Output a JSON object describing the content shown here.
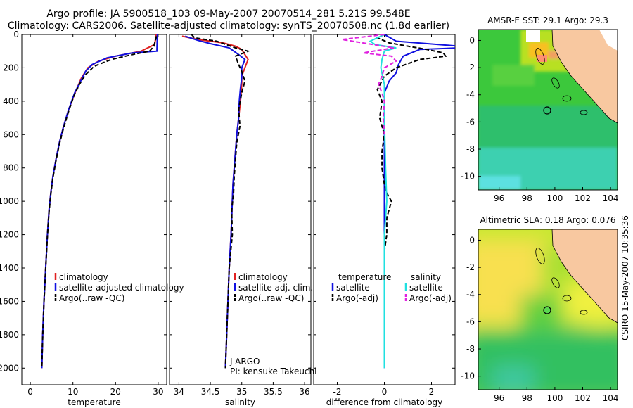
{
  "header": {
    "title_line1": "Argo profile: JA 5900518_103 09-May-2007 20070514_281 5.21S 99.548E",
    "title_line2": "Climatology: CARS2006. Satellite-adjusted climatology: synTS_20070508.nc (1.8d earlier)"
  },
  "side_label": "CSIRO 15-May-2007 10:35:36",
  "colors": {
    "climatology": "#e02020",
    "satellite": "#1010e0",
    "argo": "#000000",
    "satellite_salinity": "#20e0e0",
    "argo_adj_salinity": "#e020e0",
    "ocean_green": "#3cc83c",
    "land": "#f8c8a0"
  },
  "chart_data": [
    {
      "type": "line",
      "xlabel": "temperature",
      "ylabel": "",
      "xlim": [
        -2,
        32
      ],
      "ylim": [
        2100,
        0
      ],
      "xticks": [
        0,
        10,
        20,
        30
      ],
      "yticks": [
        0,
        200,
        400,
        600,
        800,
        1000,
        1200,
        1400,
        1600,
        1800,
        2000
      ],
      "legend": [
        "climatology",
        "satellite-adjusted climatology",
        "Argo(..raw -QC)"
      ],
      "legend_position": "lower-right",
      "series": [
        {
          "name": "climatology",
          "style": "solid",
          "color": "#e02020",
          "points": [
            [
              29.5,
              0
            ],
            [
              29.2,
              60
            ],
            [
              26,
              100
            ],
            [
              20,
              130
            ],
            [
              16,
              160
            ],
            [
              13.5,
              200
            ],
            [
              12,
              260
            ],
            [
              10.5,
              350
            ],
            [
              9,
              450
            ],
            [
              7.8,
              550
            ],
            [
              6.8,
              650
            ],
            [
              6,
              750
            ],
            [
              5.3,
              850
            ],
            [
              4.8,
              950
            ],
            [
              4.4,
              1050
            ],
            [
              4,
              1200
            ],
            [
              3.6,
              1400
            ],
            [
              3.2,
              1600
            ],
            [
              2.9,
              1800
            ],
            [
              2.7,
              2000
            ]
          ]
        },
        {
          "name": "satellite-adjusted climatology",
          "style": "solid",
          "color": "#1010e0",
          "points": [
            [
              29.8,
              0
            ],
            [
              29.7,
              100
            ],
            [
              24,
              110
            ],
            [
              18,
              140
            ],
            [
              14.5,
              180
            ],
            [
              13,
              220
            ],
            [
              11.8,
              280
            ],
            [
              10.4,
              350
            ],
            [
              9,
              450
            ],
            [
              7.8,
              550
            ],
            [
              6.8,
              650
            ],
            [
              6,
              750
            ],
            [
              5.3,
              850
            ],
            [
              4.8,
              950
            ],
            [
              4.4,
              1050
            ],
            [
              4,
              1200
            ],
            [
              3.6,
              1400
            ],
            [
              3.2,
              1600
            ],
            [
              2.9,
              1800
            ],
            [
              2.7,
              2000
            ]
          ]
        },
        {
          "name": "Argo(..raw -QC)",
          "style": "dashed",
          "color": "#000000",
          "points": [
            [
              29.6,
              10
            ],
            [
              29,
              70
            ],
            [
              28,
              100
            ],
            [
              24,
              120
            ],
            [
              19,
              150
            ],
            [
              15,
              190
            ],
            [
              13,
              240
            ],
            [
              11.5,
              300
            ],
            [
              10.2,
              370
            ],
            [
              9,
              460
            ],
            [
              7.8,
              560
            ],
            [
              6.8,
              660
            ],
            [
              6,
              760
            ],
            [
              5.3,
              860
            ],
            [
              4.8,
              960
            ],
            [
              4.4,
              1060
            ],
            [
              4,
              1210
            ],
            [
              3.6,
              1410
            ],
            [
              3.2,
              1610
            ],
            [
              2.9,
              1810
            ],
            [
              2.7,
              1990
            ]
          ]
        }
      ]
    },
    {
      "type": "line",
      "xlabel": "salinity",
      "ylabel": "",
      "xlim": [
        33.85,
        36.1
      ],
      "ylim": [
        2100,
        0
      ],
      "xticks": [
        34,
        34.5,
        35,
        35.5,
        36
      ],
      "legend": [
        "climatology",
        "satellite adj. clim.",
        "Argo(..raw -QC)"
      ],
      "legend_position": "lower-right",
      "annotations": [
        "J-ARGO",
        "PI: kensuke Takeuchi"
      ],
      "series": [
        {
          "name": "climatology",
          "style": "solid",
          "color": "#e02020",
          "points": [
            [
              34.05,
              10
            ],
            [
              34.3,
              30
            ],
            [
              34.7,
              50
            ],
            [
              34.9,
              70
            ],
            [
              35.0,
              90
            ],
            [
              35.1,
              150
            ],
            [
              35.05,
              200
            ],
            [
              35.0,
              250
            ],
            [
              35.0,
              300
            ],
            [
              34.98,
              400
            ],
            [
              34.95,
              500
            ],
            [
              34.92,
              600
            ],
            [
              34.9,
              700
            ],
            [
              34.88,
              800
            ],
            [
              34.86,
              900
            ],
            [
              34.85,
              1000
            ],
            [
              34.83,
              1200
            ],
            [
              34.8,
              1400
            ],
            [
              34.78,
              1600
            ],
            [
              34.76,
              1800
            ],
            [
              34.74,
              2000
            ]
          ]
        },
        {
          "name": "satellite adj. clim.",
          "style": "solid",
          "color": "#1010e0",
          "points": [
            [
              34.1,
              10
            ],
            [
              34.3,
              35
            ],
            [
              34.5,
              55
            ],
            [
              34.8,
              80
            ],
            [
              34.95,
              120
            ],
            [
              35.05,
              150
            ],
            [
              35.0,
              200
            ],
            [
              35.0,
              260
            ],
            [
              34.98,
              320
            ],
            [
              34.96,
              400
            ],
            [
              34.95,
              500
            ],
            [
              34.92,
              600
            ],
            [
              34.9,
              700
            ],
            [
              34.88,
              800
            ],
            [
              34.86,
              900
            ],
            [
              34.85,
              1000
            ],
            [
              34.83,
              1200
            ],
            [
              34.8,
              1400
            ],
            [
              34.78,
              1600
            ],
            [
              34.76,
              1800
            ],
            [
              34.74,
              2000
            ]
          ]
        },
        {
          "name": "Argo(..raw -QC)",
          "style": "dashed",
          "color": "#000000",
          "points": [
            [
              34.2,
              0
            ],
            [
              34.25,
              20
            ],
            [
              34.6,
              40
            ],
            [
              34.9,
              80
            ],
            [
              35.1,
              100
            ],
            [
              34.9,
              130
            ],
            [
              34.95,
              180
            ],
            [
              35.0,
              220
            ],
            [
              35.05,
              280
            ],
            [
              35.0,
              350
            ],
            [
              34.95,
              450
            ],
            [
              34.97,
              550
            ],
            [
              34.92,
              650
            ],
            [
              34.9,
              750
            ],
            [
              34.88,
              850
            ],
            [
              34.87,
              950
            ],
            [
              34.84,
              1050
            ],
            [
              34.85,
              1200
            ],
            [
              34.8,
              1400
            ],
            [
              34.78,
              1600
            ],
            [
              34.76,
              1800
            ],
            [
              34.74,
              2000
            ]
          ]
        }
      ]
    },
    {
      "type": "line",
      "xlabel": "difference from climatology",
      "ylabel": "",
      "xlim": [
        -3,
        3
      ],
      "ylim": [
        2100,
        0
      ],
      "xticks": [
        -2,
        0,
        2
      ],
      "legend": [
        "temperature",
        "satellite",
        "Argo(-adj)",
        "salinity",
        "satellite",
        "Argo(-adj)"
      ],
      "legend_position": "lower-right",
      "series": [
        {
          "name": "temperature satellite",
          "style": "solid",
          "color": "#1010e0",
          "points": [
            [
              0,
              0
            ],
            [
              0.5,
              40
            ],
            [
              3.2,
              70
            ],
            [
              3.2,
              80
            ],
            [
              1.5,
              90
            ],
            [
              0.8,
              130
            ],
            [
              0.6,
              180
            ],
            [
              0.5,
              230
            ],
            [
              0.2,
              280
            ],
            [
              0,
              350
            ],
            [
              0,
              500
            ],
            [
              0,
              800
            ],
            [
              0,
              1000
            ],
            [
              0,
              1400
            ],
            [
              0,
              1800
            ],
            [
              0,
              2000
            ]
          ]
        },
        {
          "name": "temperature Argo(-adj)",
          "style": "dashed",
          "color": "#000000",
          "points": [
            [
              0,
              0
            ],
            [
              -0.3,
              20
            ],
            [
              0.2,
              50
            ],
            [
              1.8,
              90
            ],
            [
              2.5,
              110
            ],
            [
              2.6,
              130
            ],
            [
              1.5,
              150
            ],
            [
              0.5,
              200
            ],
            [
              0,
              250
            ],
            [
              -0.3,
              330
            ],
            [
              -0.1,
              400
            ],
            [
              -0.2,
              500
            ],
            [
              0,
              600
            ],
            [
              -0.1,
              700
            ],
            [
              -0.1,
              800
            ],
            [
              0,
              900
            ],
            [
              0.1,
              950
            ],
            [
              0.3,
              1000
            ],
            [
              0.1,
              1100
            ],
            [
              0.1,
              1200
            ],
            [
              0,
              1300
            ],
            [
              0,
              1500
            ],
            [
              0,
              1800
            ],
            [
              0,
              1990
            ]
          ]
        },
        {
          "name": "salinity satellite",
          "style": "solid",
          "color": "#20e0e0",
          "points": [
            [
              0,
              0
            ],
            [
              -0.6,
              40
            ],
            [
              -0.4,
              60
            ],
            [
              0.5,
              80
            ],
            [
              0,
              100
            ],
            [
              -0.1,
              150
            ],
            [
              -0.15,
              200
            ],
            [
              0,
              300
            ],
            [
              0,
              500
            ],
            [
              0.05,
              800
            ],
            [
              0.1,
              1000
            ],
            [
              0,
              1200
            ],
            [
              0,
              1600
            ],
            [
              0,
              2000
            ]
          ]
        },
        {
          "name": "salinity Argo(-adj)",
          "style": "dashed",
          "color": "#e020e0",
          "points": [
            [
              0,
              0
            ],
            [
              -1.8,
              30
            ],
            [
              -0.5,
              60
            ],
            [
              0.4,
              80
            ],
            [
              -0.9,
              110
            ],
            [
              0.3,
              130
            ],
            [
              0.5,
              160
            ],
            [
              0,
              200
            ],
            [
              -0.1,
              250
            ],
            [
              -0.25,
              300
            ],
            [
              -0.1,
              350
            ],
            [
              0,
              400
            ],
            [
              -0.05,
              500
            ],
            [
              0,
              600
            ]
          ]
        }
      ]
    },
    {
      "type": "heatmap",
      "title": "AMSR-E SST: 29.1 Argo: 29.3",
      "xlim": [
        94.5,
        104.5
      ],
      "ylim": [
        -11,
        0.8
      ],
      "xticks": [
        96,
        98,
        100,
        102,
        104
      ],
      "yticks": [
        0,
        -2,
        -4,
        -6,
        -8,
        -10
      ],
      "argo_marker": [
        99.548,
        -5.21
      ]
    },
    {
      "type": "heatmap",
      "title": "Altimetric SLA: 0.18 Argo: 0.076",
      "xlim": [
        94.5,
        104.5
      ],
      "ylim": [
        -11,
        0.8
      ],
      "xticks": [
        96,
        98,
        100,
        102,
        104
      ],
      "yticks": [
        0,
        -2,
        -4,
        -6,
        -8,
        -10
      ],
      "argo_marker": [
        99.548,
        -5.21
      ]
    }
  ]
}
